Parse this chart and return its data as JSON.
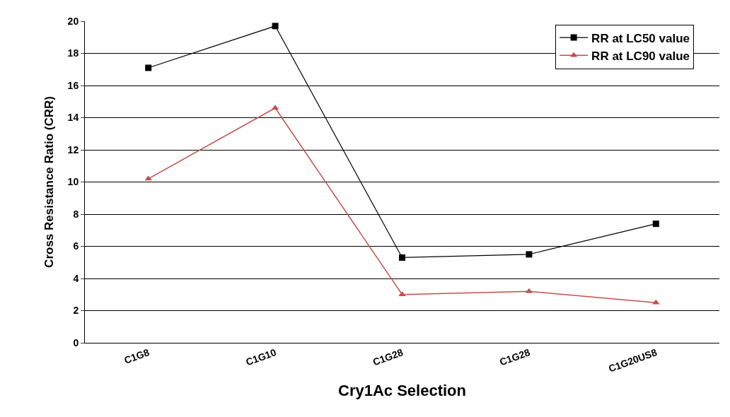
{
  "chart_data": {
    "type": "line",
    "xlabel": "Cry1Ac Selection",
    "ylabel": "Cross Resistance Ratio (CRR)",
    "categories": [
      "C1G8",
      "C1G10",
      "C1G28",
      "C1G28",
      "C1G20US8"
    ],
    "series": [
      {
        "name": "RR at LC50 value",
        "color": "#000000",
        "marker": "square",
        "values": [
          17.1,
          19.7,
          5.3,
          5.5,
          7.4
        ]
      },
      {
        "name": "RR at LC90 value",
        "color": "#c0504d",
        "marker": "triangle",
        "values": [
          10.2,
          14.6,
          3.0,
          3.2,
          2.5
        ]
      }
    ],
    "ylim": [
      0,
      20
    ],
    "yticks": [
      0,
      2,
      4,
      6,
      8,
      10,
      12,
      14,
      16,
      18,
      20
    ],
    "grid": "y",
    "legend": "top right"
  }
}
